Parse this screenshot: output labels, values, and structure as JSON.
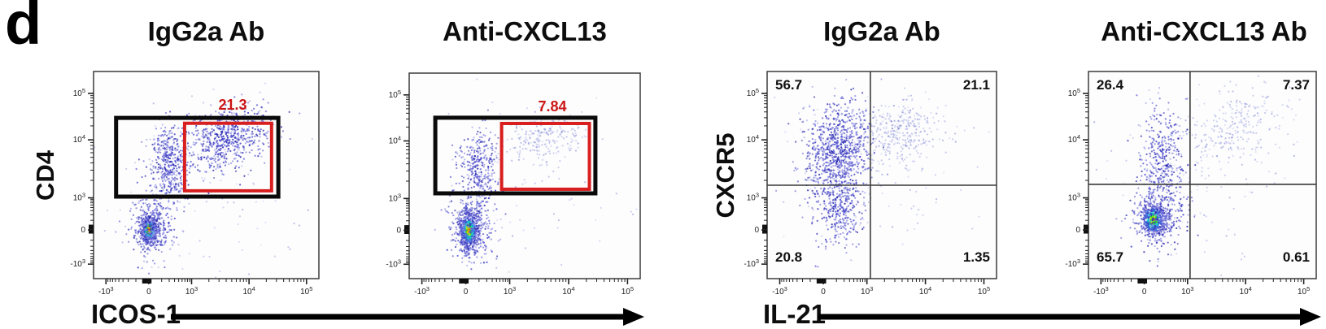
{
  "figure_label": "d",
  "colors": {
    "gate_black": "#0a0a0a",
    "gate_red": "#d81e1e",
    "value_red": "#cc1616",
    "frame": "#3c3c3c",
    "axis_tick": "#222222",
    "quadrant_line": "#3a3a3a",
    "dot_blue": "#4040c4"
  },
  "chart_data": [
    {
      "type": "scatter",
      "title": "IgG2a Ab",
      "xlabel": "ICOS-1",
      "ylabel": "CD4",
      "x_scale": "biexponential",
      "y_scale": "biexponential",
      "x_ticks": [
        {
          "b": "-10",
          "s": "3"
        },
        {
          "b": "0",
          "s": ""
        },
        {
          "b": "10",
          "s": "3"
        },
        {
          "b": "10",
          "s": "4"
        },
        {
          "b": "10",
          "s": "5"
        }
      ],
      "y_ticks": [
        {
          "b": "10",
          "s": "5"
        },
        {
          "b": "10",
          "s": "4"
        },
        {
          "b": "10",
          "s": "3"
        },
        {
          "b": "0",
          "s": ""
        },
        {
          "b": "-10",
          "s": "3"
        }
      ],
      "gates": [
        {
          "name": "CD4-high gate",
          "color": "black",
          "rect": {
            "x1": 0.1,
            "y1": 0.224,
            "x2": 0.82,
            "y2": 0.604
          }
        },
        {
          "name": "ICOS-1-positive gate",
          "color": "red",
          "value": "21.3",
          "rect": {
            "x1": 0.404,
            "y1": 0.25,
            "x2": 0.79,
            "y2": 0.576
          }
        }
      ],
      "clusters": [
        {
          "n": 420,
          "fx": 0.247,
          "fy": 0.765,
          "sx": 0.02,
          "sy": 0.034,
          "palette": "hot"
        },
        {
          "n": 380,
          "fx": 0.255,
          "fy": 0.74,
          "sx": 0.05,
          "sy": 0.075,
          "palette": "blue"
        },
        {
          "n": 420,
          "fx": 0.335,
          "fy": 0.44,
          "sx": 0.045,
          "sy": 0.095,
          "palette": "blue"
        },
        {
          "n": 620,
          "fx": 0.585,
          "fy": 0.325,
          "sx": 0.095,
          "sy": 0.07,
          "corr": 0.3,
          "palette": "blue"
        },
        {
          "n": 130,
          "fx": 0.45,
          "fy": 0.55,
          "sx": 0.21,
          "sy": 0.21,
          "palette": "faint"
        }
      ]
    },
    {
      "type": "scatter",
      "title": "Anti-CXCL13",
      "xlabel": "ICOS-1",
      "ylabel": "CD4",
      "x_scale": "biexponential",
      "y_scale": "biexponential",
      "x_ticks": [
        {
          "b": "-10",
          "s": "3"
        },
        {
          "b": "0",
          "s": ""
        },
        {
          "b": "10",
          "s": "3"
        },
        {
          "b": "10",
          "s": "4"
        },
        {
          "b": "10",
          "s": "5"
        }
      ],
      "y_ticks": [
        {
          "b": "10",
          "s": "5"
        },
        {
          "b": "10",
          "s": "4"
        },
        {
          "b": "10",
          "s": "3"
        },
        {
          "b": "0",
          "s": ""
        },
        {
          "b": "-10",
          "s": "3"
        }
      ],
      "gates": [
        {
          "name": "CD4-high gate",
          "color": "black",
          "rect": {
            "x1": 0.113,
            "y1": 0.217,
            "x2": 0.806,
            "y2": 0.585
          }
        },
        {
          "name": "ICOS-1-positive gate",
          "color": "red",
          "value": "7.84",
          "rect": {
            "x1": 0.4,
            "y1": 0.245,
            "x2": 0.78,
            "y2": 0.565
          }
        }
      ],
      "clusters": [
        {
          "n": 650,
          "fx": 0.258,
          "fy": 0.765,
          "sx": 0.021,
          "sy": 0.046,
          "palette": "hot2"
        },
        {
          "n": 330,
          "fx": 0.27,
          "fy": 0.74,
          "sx": 0.05,
          "sy": 0.085,
          "palette": "blue"
        },
        {
          "n": 300,
          "fx": 0.295,
          "fy": 0.45,
          "sx": 0.04,
          "sy": 0.1,
          "palette": "blue"
        },
        {
          "n": 240,
          "fx": 0.595,
          "fy": 0.315,
          "sx": 0.09,
          "sy": 0.06,
          "corr": 0.3,
          "palette": "faint"
        },
        {
          "n": 90,
          "fx": 0.45,
          "fy": 0.55,
          "sx": 0.2,
          "sy": 0.2,
          "palette": "faint"
        }
      ]
    },
    {
      "type": "scatter",
      "title": "IgG2a Ab",
      "xlabel": "IL-21",
      "ylabel": "CXCR5",
      "x_scale": "biexponential",
      "y_scale": "biexponential",
      "x_ticks": [
        {
          "b": "-10",
          "s": "3"
        },
        {
          "b": "0",
          "s": ""
        },
        {
          "b": "10",
          "s": "3"
        },
        {
          "b": "10",
          "s": "4"
        },
        {
          "b": "10",
          "s": "5"
        }
      ],
      "y_ticks": [
        {
          "b": "10",
          "s": "5"
        },
        {
          "b": "10",
          "s": "4"
        },
        {
          "b": "10",
          "s": "3"
        },
        {
          "b": "0",
          "s": ""
        },
        {
          "b": "-10",
          "s": "3"
        }
      ],
      "quadrant_split": {
        "fx": 0.45,
        "fy": 0.549
      },
      "quadrants": {
        "upper_left": "56.7",
        "upper_right": "21.1",
        "lower_left": "20.8",
        "lower_right": "1.35"
      },
      "clusters": [
        {
          "n": 820,
          "fx": 0.305,
          "fy": 0.385,
          "sx": 0.075,
          "sy": 0.115,
          "corr": 0.2,
          "palette": "blue"
        },
        {
          "n": 320,
          "fx": 0.58,
          "fy": 0.3,
          "sx": 0.095,
          "sy": 0.075,
          "corr": 0.3,
          "palette": "faint"
        },
        {
          "n": 330,
          "fx": 0.315,
          "fy": 0.655,
          "sx": 0.05,
          "sy": 0.095,
          "palette": "blue"
        },
        {
          "n": 150,
          "fx": 0.45,
          "fy": 0.45,
          "sx": 0.2,
          "sy": 0.2,
          "palette": "faint"
        }
      ]
    },
    {
      "type": "scatter",
      "title": "Anti-CXCL13 Ab",
      "xlabel": "IL-21",
      "ylabel": "CXCR5",
      "x_scale": "biexponential",
      "y_scale": "biexponential",
      "x_ticks": [
        {
          "b": "-10",
          "s": "3"
        },
        {
          "b": "0",
          "s": ""
        },
        {
          "b": "10",
          "s": "3"
        },
        {
          "b": "10",
          "s": "4"
        },
        {
          "b": "10",
          "s": "5"
        }
      ],
      "y_ticks": [
        {
          "b": "10",
          "s": "5"
        },
        {
          "b": "10",
          "s": "4"
        },
        {
          "b": "10",
          "s": "3"
        },
        {
          "b": "0",
          "s": ""
        },
        {
          "b": "-10",
          "s": "3"
        }
      ],
      "quadrant_split": {
        "fx": 0.446,
        "fy": 0.545
      },
      "quadrants": {
        "upper_left": "26.4",
        "upper_right": "7.37",
        "lower_left": "65.7",
        "lower_right": "0.61"
      },
      "clusters": [
        {
          "n": 560,
          "fx": 0.285,
          "fy": 0.715,
          "sx": 0.028,
          "sy": 0.04,
          "palette": "hot2"
        },
        {
          "n": 330,
          "fx": 0.3,
          "fy": 0.69,
          "sx": 0.06,
          "sy": 0.08,
          "palette": "blue"
        },
        {
          "n": 330,
          "fx": 0.325,
          "fy": 0.43,
          "sx": 0.05,
          "sy": 0.115,
          "palette": "blue"
        },
        {
          "n": 260,
          "fx": 0.66,
          "fy": 0.26,
          "sx": 0.13,
          "sy": 0.095,
          "corr": 0.3,
          "palette": "faint"
        },
        {
          "n": 110,
          "fx": 0.45,
          "fy": 0.5,
          "sx": 0.2,
          "sy": 0.2,
          "palette": "faint"
        }
      ]
    }
  ],
  "x_axis_arrows": [
    {
      "label": "ICOS-1"
    },
    {
      "label": "IL-21"
    }
  ]
}
